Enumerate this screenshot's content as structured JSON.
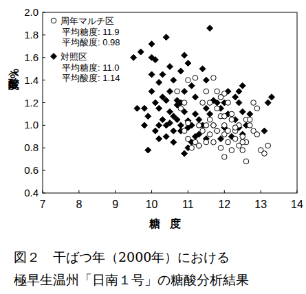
{
  "chart_data": {
    "type": "scatter",
    "title": "図２　干ばつ年（2000年）における",
    "subtitle": "極早生温州「日南１号」の糖酸分析結果",
    "x_label": "糖度",
    "y_label": "酸度（%）",
    "xlim": [
      7,
      14
    ],
    "xticks": [
      7,
      8,
      9,
      10,
      11,
      12,
      13,
      14
    ],
    "ylim": [
      0.4,
      2.0
    ],
    "yticks": [
      0.4,
      0.6,
      0.8,
      {
        "value": 1,
        "label": "1.0"
      },
      1.2,
      1.4,
      1.6,
      1.8,
      {
        "value": 2,
        "label": "2.0"
      }
    ],
    "grid": false,
    "legend": "upper left",
    "series": [
      {
        "name": "周年マルチ区",
        "color": "#000000",
        "marker": "open-circle",
        "annotations": [
          "平均糖度: 11.9",
          "平均酸度: 0.98"
        ],
        "x": [
          10.7,
          10.8,
          10.9,
          10.9,
          11.0,
          11.0,
          11.1,
          11.2,
          11.2,
          11.3,
          11.3,
          11.4,
          11.5,
          11.5,
          11.6,
          11.6,
          11.7,
          11.7,
          11.7,
          11.8,
          11.8,
          11.8,
          11.9,
          11.9,
          11.9,
          12.0,
          12.0,
          12.0,
          12.0,
          12.1,
          12.1,
          12.1,
          12.2,
          12.2,
          12.3,
          12.3,
          12.4,
          12.4,
          12.5,
          12.5,
          12.6,
          12.6,
          12.6,
          12.7,
          12.8,
          12.8,
          12.9,
          12.9,
          13.0,
          13.1,
          13.2,
          12.2,
          11.6,
          11.4,
          12.0,
          12.3,
          11.0,
          11.5,
          12.7,
          12.5
        ],
        "values": [
          1.3,
          1.15,
          1.2,
          0.95,
          0.88,
          1.4,
          0.8,
          1.42,
          0.85,
          1.0,
          0.82,
          0.95,
          1.0,
          0.85,
          0.92,
          1.05,
          1.42,
          1.0,
          0.85,
          1.3,
          0.95,
          1.15,
          1.08,
          1.25,
          0.8,
          1.28,
          1.0,
          0.92,
          0.72,
          1.2,
          0.95,
          0.85,
          1.05,
          0.78,
          0.95,
          0.88,
          1.0,
          0.82,
          0.9,
          0.78,
          0.85,
          0.68,
          1.05,
          1.05,
          1.2,
          0.95,
          1.15,
          0.92,
          0.78,
          0.75,
          0.82,
          1.1,
          1.2,
          1.2,
          1.08,
          0.98,
          1.02,
          1.3,
          1.0,
          0.85
        ]
      },
      {
        "name": "対照区",
        "color": "#000000",
        "marker": "diamond",
        "annotations": [
          "平均糖度: 11.0",
          "平均酸度: 1.14"
        ],
        "x": [
          9.5,
          9.7,
          9.8,
          9.9,
          9.9,
          10.0,
          10.0,
          10.0,
          10.0,
          10.1,
          10.1,
          10.1,
          10.2,
          10.2,
          10.2,
          10.3,
          10.3,
          10.4,
          10.4,
          10.4,
          10.4,
          10.5,
          10.5,
          10.5,
          10.5,
          10.6,
          10.6,
          10.6,
          10.7,
          10.7,
          10.7,
          10.8,
          10.8,
          10.8,
          10.8,
          10.9,
          10.9,
          10.9,
          10.9,
          11.0,
          11.0,
          11.0,
          11.0,
          11.1,
          11.1,
          11.1,
          11.2,
          11.2,
          11.2,
          11.3,
          11.3,
          11.3,
          11.4,
          11.4,
          11.5,
          11.5,
          11.6,
          11.6,
          11.7,
          11.7,
          11.8,
          11.8,
          11.9,
          11.9,
          12.0,
          12.0,
          12.1,
          12.1,
          12.2,
          12.3,
          12.3,
          12.4,
          12.4,
          12.4,
          12.5,
          12.5,
          12.5,
          12.6,
          12.7,
          13.2,
          13.3,
          13.1,
          10.2,
          10.6,
          9.8,
          11.5,
          10.3,
          9.6
        ],
        "values": [
          1.6,
          1.65,
          1.15,
          0.78,
          1.08,
          1.3,
          1.45,
          1.72,
          1.6,
          1.58,
          1.2,
          0.95,
          1.38,
          1.15,
          0.88,
          1.05,
          1.25,
          1.78,
          1.22,
          1.0,
          0.9,
          1.52,
          1.3,
          1.12,
          1.02,
          1.08,
          0.95,
          0.85,
          1.22,
          1.05,
          1.18,
          1.48,
          1.2,
          1.0,
          0.95,
          1.62,
          1.12,
          0.75,
          1.3,
          1.55,
          1.04,
          0.98,
          0.8,
          1.35,
          1.0,
          0.85,
          1.1,
          0.9,
          1.25,
          0.92,
          1.05,
          0.82,
          1.5,
          1.0,
          1.15,
          0.88,
          1.86,
          1.1,
          1.0,
          1.22,
          1.2,
          0.95,
          1.15,
          0.88,
          1.2,
          0.98,
          1.1,
          1.3,
          0.9,
          1.25,
          1.05,
          1.2,
          1.3,
          0.98,
          1.35,
          0.92,
          1.12,
          1.0,
          1.1,
          1.2,
          1.25,
          0.95,
          1.0,
          1.4,
          1.0,
          1.4,
          1.45,
          1.15
        ]
      }
    ]
  }
}
